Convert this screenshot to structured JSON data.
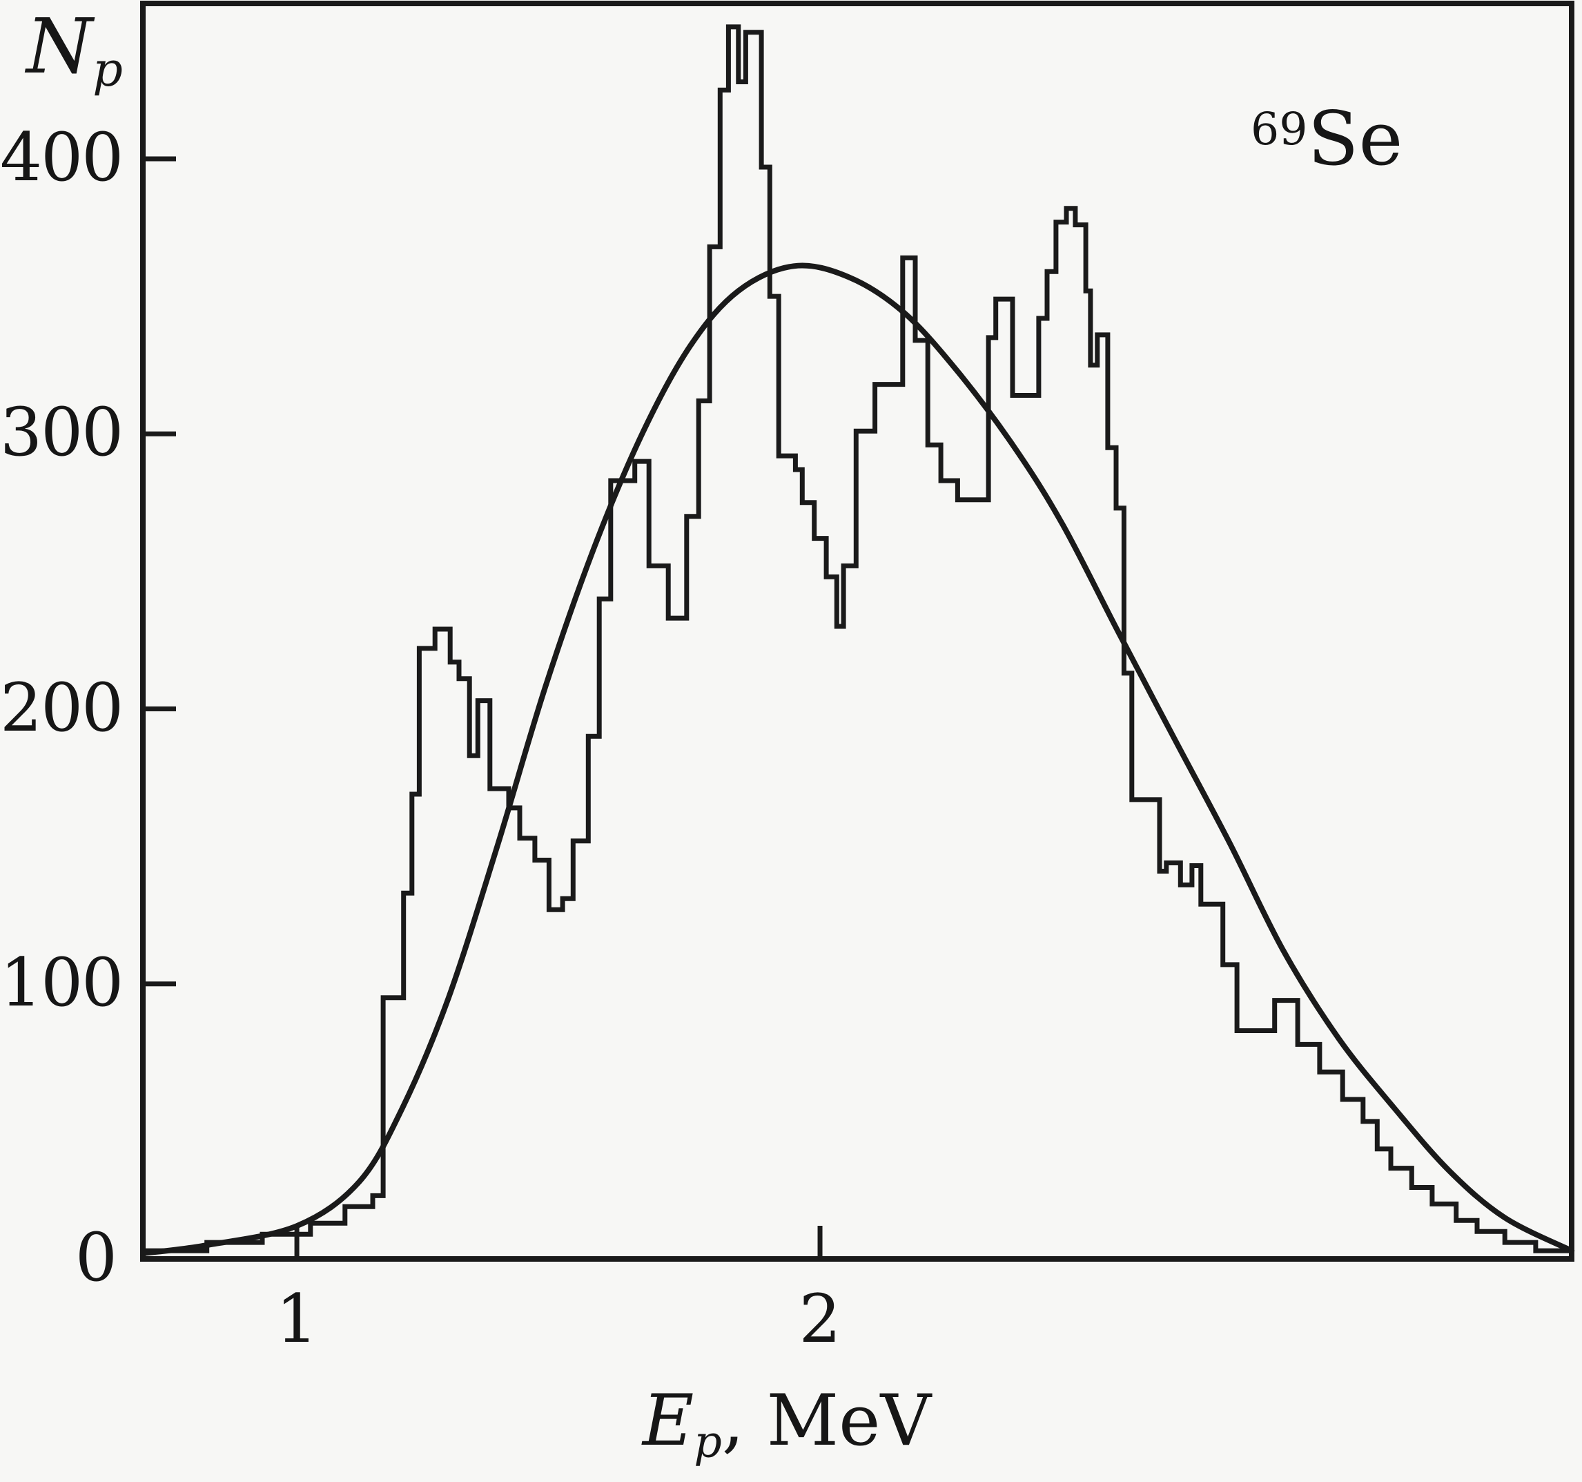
{
  "figure": {
    "isotope": {
      "mass_number": "69",
      "element": "Se"
    },
    "y_axis_label": {
      "main": "N",
      "sub": "p"
    },
    "x_axis_label": {
      "main": "E",
      "sub": "p",
      "rest": ", MeV"
    }
  },
  "style": {
    "ink": "#1a1a1a",
    "background": "#f7f7f5"
  },
  "chart_data": {
    "type": "bar",
    "subtype": "step-histogram with smooth overlay curve",
    "title": "",
    "annotation": "69Se",
    "xlabel": "Ep, MeV",
    "ylabel": "Np",
    "xlim": [
      0.7057,
      3.4367
    ],
    "ylim": [
      0,
      456.5
    ],
    "grid": false,
    "legend": "none",
    "xticks": [
      {
        "v": 1,
        "label": "1"
      },
      {
        "v": 2,
        "label": "2"
      }
    ],
    "yticks": [
      {
        "v": 0,
        "label": "0"
      },
      {
        "v": 100,
        "label": "100"
      },
      {
        "v": 200,
        "label": "200"
      },
      {
        "v": 300,
        "label": "300"
      },
      {
        "v": 400,
        "label": "400"
      }
    ],
    "series": [
      {
        "name": "histogram",
        "type": "step",
        "edges_mev": [
          0.706,
          0.828,
          0.934,
          1.026,
          1.092,
          1.145,
          1.165,
          1.204,
          1.22,
          1.234,
          1.264,
          1.293,
          1.31,
          1.33,
          1.346,
          1.369,
          1.405,
          1.426,
          1.455,
          1.482,
          1.508,
          1.528,
          1.557,
          1.578,
          1.6,
          1.646,
          1.673,
          1.71,
          1.745,
          1.768,
          1.789,
          1.809,
          1.825,
          1.844,
          1.858,
          1.888,
          1.904,
          1.921,
          1.953,
          1.966,
          1.989,
          2.012,
          2.032,
          2.045,
          2.069,
          2.105,
          2.158,
          2.182,
          2.206,
          2.231,
          2.263,
          2.322,
          2.336,
          2.368,
          2.418,
          2.434,
          2.451,
          2.471,
          2.488,
          2.508,
          2.517,
          2.53,
          2.55,
          2.566,
          2.581,
          2.596,
          2.649,
          2.662,
          2.689,
          2.711,
          2.728,
          2.77,
          2.797,
          2.869,
          2.913,
          2.955,
          2.999,
          3.038,
          3.065,
          3.091,
          3.131,
          3.17,
          3.216,
          3.256,
          3.309,
          3.368,
          3.437
        ],
        "counts": [
          3,
          6,
          9,
          13,
          19,
          23,
          95,
          133,
          169,
          222,
          229,
          217,
          211,
          183,
          203,
          171,
          164,
          153,
          145,
          127,
          131,
          152,
          190,
          240,
          283,
          290,
          252,
          233,
          270,
          312,
          368,
          425,
          448,
          428,
          446,
          397,
          350,
          292,
          287,
          275,
          262,
          248,
          230,
          252,
          301,
          318,
          364,
          334,
          296,
          283,
          276,
          335,
          349,
          314,
          342,
          359,
          377,
          382,
          376,
          352,
          325,
          336,
          295,
          273,
          213,
          167,
          141,
          144,
          136,
          143,
          129,
          107,
          83,
          94,
          78,
          68,
          58,
          50,
          40,
          33,
          26,
          20,
          14,
          10,
          6,
          3
        ]
      },
      {
        "name": "smooth_curve",
        "type": "line",
        "points_mev_counts": [
          [
            0.706,
            2
          ],
          [
            0.828,
            5
          ],
          [
            1.0,
            12
          ],
          [
            1.119,
            28
          ],
          [
            1.202,
            55
          ],
          [
            1.29,
            95
          ],
          [
            1.383,
            150
          ],
          [
            1.475,
            208
          ],
          [
            1.567,
            258
          ],
          [
            1.66,
            300
          ],
          [
            1.752,
            332
          ],
          [
            1.844,
            352
          ],
          [
            1.95,
            361
          ],
          [
            2.055,
            357
          ],
          [
            2.161,
            344
          ],
          [
            2.266,
            322
          ],
          [
            2.372,
            295
          ],
          [
            2.464,
            267
          ],
          [
            2.57,
            228
          ],
          [
            2.675,
            190
          ],
          [
            2.781,
            152
          ],
          [
            2.886,
            112
          ],
          [
            2.992,
            80
          ],
          [
            3.097,
            55
          ],
          [
            3.203,
            32
          ],
          [
            3.309,
            15
          ],
          [
            3.437,
            3
          ]
        ]
      }
    ]
  }
}
